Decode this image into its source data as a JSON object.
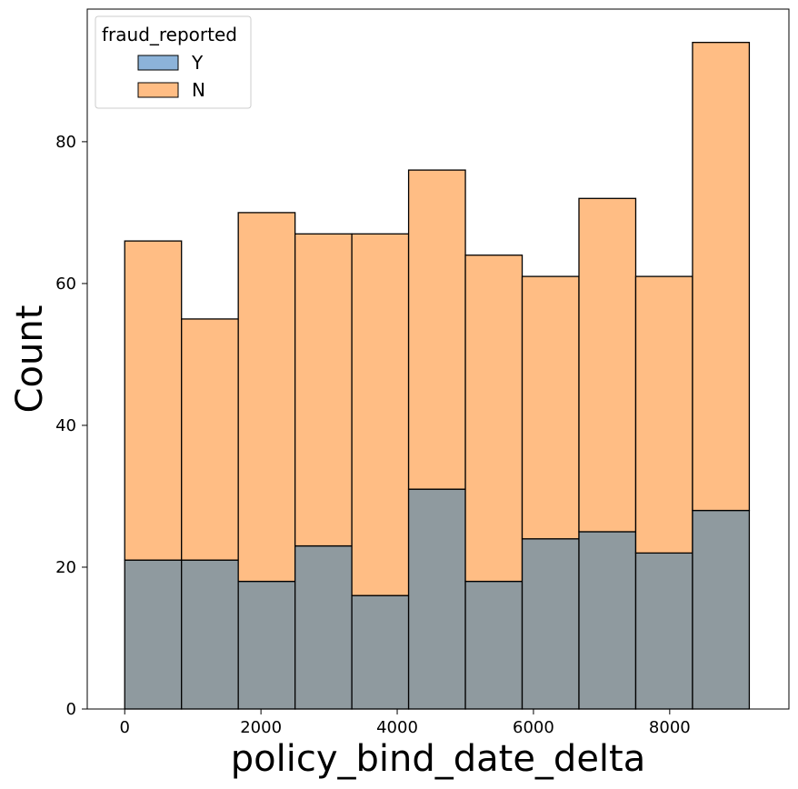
{
  "chart_data": {
    "type": "bar",
    "subtype": "stacked-histogram",
    "title": "",
    "xlabel": "policy_bind_date_delta",
    "ylabel": "Count",
    "xlim": [
      -550,
      9750
    ],
    "ylim": [
      0,
      98.7
    ],
    "xticks": [
      0,
      2000,
      4000,
      6000,
      8000
    ],
    "yticks": [
      0,
      20,
      40,
      60,
      80
    ],
    "bin_edges": [
      0,
      833.5,
      1667,
      2500.5,
      3334,
      4167.5,
      5001,
      5834.5,
      6668,
      7501.5,
      8335,
      9168.5
    ],
    "legend": {
      "title": "fraud_reported",
      "placement": "top-left"
    },
    "series": [
      {
        "name": "Y",
        "color": "#1f77b4",
        "values": [
          21,
          21,
          18,
          23,
          16,
          31,
          18,
          24,
          25,
          22,
          28
        ]
      },
      {
        "name": "N",
        "color": "#ff7f0e",
        "values": [
          45,
          34,
          52,
          44,
          51,
          45,
          46,
          37,
          47,
          39,
          66
        ]
      }
    ],
    "totals": [
      66,
      55,
      70,
      67,
      67,
      76,
      64,
      61,
      72,
      61,
      94
    ],
    "grid": false
  }
}
